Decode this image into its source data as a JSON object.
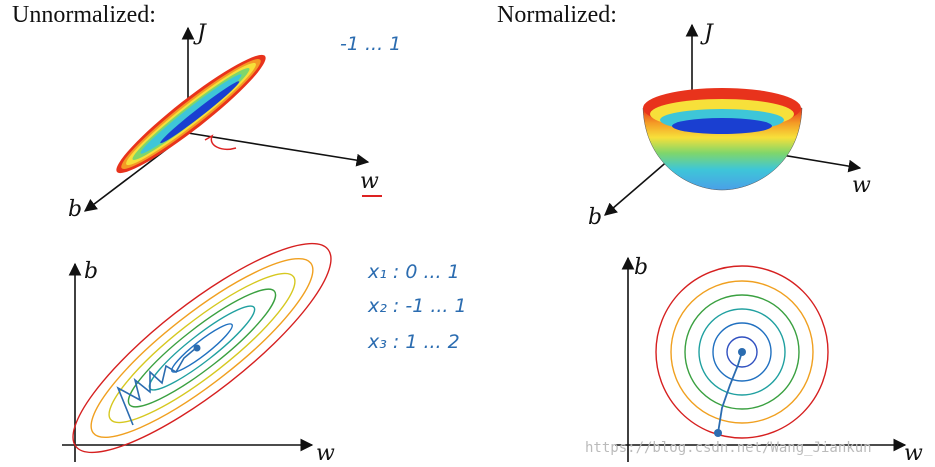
{
  "panels": [
    {
      "title": "Unnormalized:",
      "surface_axes": {
        "vertical": "J",
        "right": "w",
        "left": "b"
      },
      "contour_axes": {
        "vertical": "b",
        "horizontal": "w"
      }
    },
    {
      "title": "Normalized:",
      "surface_axes": {
        "vertical": "J",
        "right": "w",
        "left": "b"
      },
      "contour_axes": {
        "vertical": "b",
        "horizontal": "w"
      }
    }
  ],
  "notes": [
    "-1 ... 1",
    "x₁ : 0 ... 1",
    "x₂ : -1 ... 1",
    "x₃ : 1 ... 2"
  ],
  "watermark": "https://blog.csdn.net/Wang_Jiankun"
}
